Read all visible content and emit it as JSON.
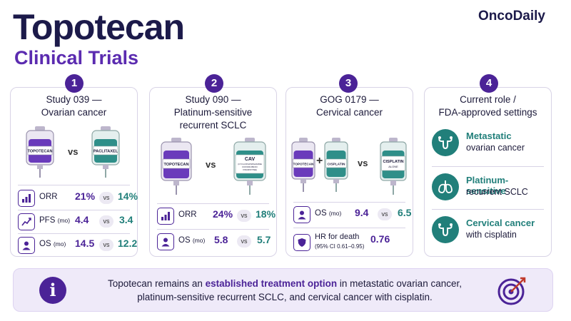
{
  "header": {
    "title": "Topotecan",
    "subtitle": "Clinical Trials",
    "brand": "OncoDaily"
  },
  "studies": [
    {
      "number": "1",
      "title_line1": "Study 039 —",
      "title_line2": "Ovarian cancer",
      "bag_left": "TOPOTECAN",
      "bag_right": "PACLITAXEL",
      "vs": "vs",
      "rows": [
        {
          "label": "ORR",
          "unit": "",
          "icon": "bar-chart-icon",
          "left": "21%",
          "right": "14%"
        },
        {
          "label": "PFS",
          "unit": "(mo)",
          "icon": "trend-line-icon",
          "left": "4.4",
          "right": "3.4"
        },
        {
          "label": "OS",
          "unit": "(mo)",
          "icon": "person-icon",
          "left": "14.5",
          "right": "12.2"
        }
      ]
    },
    {
      "number": "2",
      "title_line1": "Study 090 —",
      "title_line2": "Platinum-sensitive",
      "title_line3": "recurrent SCLC",
      "bag_left": "TOPOTECAN",
      "bag_right": "CAV",
      "bag_right_sub1": "(CYCLOPHOSPHAMIDE",
      "bag_right_sub2": "DOXORUBICIN",
      "bag_right_sub3": "VINCRISTINE)",
      "vs": "vs",
      "rows": [
        {
          "label": "ORR",
          "unit": "",
          "icon": "bar-chart-icon",
          "left": "24%",
          "right": "18%"
        },
        {
          "label": "OS",
          "unit": "(mo)",
          "icon": "person-icon",
          "left": "5.8",
          "right": "5.7"
        }
      ]
    },
    {
      "number": "3",
      "title_line1": "GOG 0179 —",
      "title_line2": "Cervical cancer",
      "bag_a": "TOPOTECAN",
      "plus": "+",
      "bag_b": "CISPLATIN",
      "bag_c": "CISPLATIN",
      "bag_c_sub": "ALONE",
      "vs": "vs",
      "rows": [
        {
          "label": "OS",
          "unit": "(mo)",
          "icon": "person-icon",
          "left": "9.4",
          "right": "6.5"
        },
        {
          "label": "HR for death",
          "sub": "(95% CI 0.61–0.95)",
          "icon": "shield-icon",
          "left": "0.76"
        }
      ]
    }
  ],
  "roles": {
    "number": "4",
    "title_line1": "Current role /",
    "title_line2": "FDA-approved settings",
    "items": [
      {
        "line1": "Metastatic",
        "line2": "ovarian cancer",
        "icon": "uterus-icon"
      },
      {
        "line1": "Platinum-sensitive",
        "line2": "recurrent SCLC",
        "icon": "lungs-icon"
      },
      {
        "line1": "Cervical cancer",
        "line2": "with cisplatin",
        "icon": "uterus-icon"
      }
    ]
  },
  "banner": {
    "info_glyph": "i",
    "text_pre": "Topotecan remains an ",
    "text_bold": "established treatment option",
    "text_post": " in metastatic ovarian cancer,",
    "text_line2": "platinum-sensitive recurrent SCLC, and cervical cancer with cisplatin."
  },
  "colors": {
    "purple": "#4b2397",
    "teal": "#217f7a",
    "navy": "#1c1a4a"
  }
}
